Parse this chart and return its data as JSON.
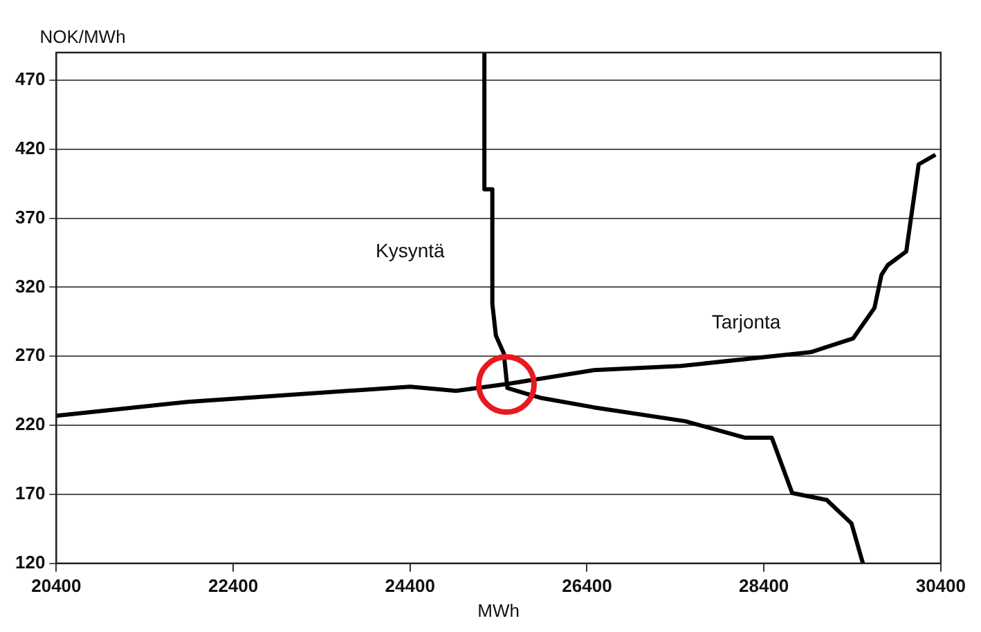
{
  "chart_data": {
    "type": "line",
    "xlabel": "MWh",
    "ylabel": "NOK/MWh",
    "xlim": [
      20400,
      30400
    ],
    "xticks": [
      20400,
      22400,
      24400,
      26400,
      28400,
      30400
    ],
    "ylim": [
      120,
      490
    ],
    "yticks": [
      120,
      170,
      220,
      270,
      320,
      370,
      420,
      470
    ],
    "grid": "y",
    "marker": "none",
    "line_style": "solid",
    "series": [
      {
        "name": "Kysyntä",
        "color": "#000000",
        "x": [
          25240,
          25240,
          25330,
          25330,
          25370,
          25460,
          25500,
          25870,
          26480,
          27510,
          28190,
          28490,
          28720,
          29110,
          29390,
          29520
        ],
        "values": [
          490,
          391,
          391,
          308,
          285,
          272,
          247,
          240,
          233,
          223,
          211,
          211,
          171,
          166,
          149,
          120
        ]
      },
      {
        "name": "Tarjonta",
        "color": "#000000",
        "x": [
          20400,
          21880,
          24400,
          24920,
          25500,
          26480,
          27460,
          28930,
          29410,
          29650,
          29730,
          29800,
          30010,
          30150,
          30340
        ],
        "values": [
          227,
          237,
          248,
          245,
          250,
          260,
          263,
          273,
          283,
          305,
          329,
          336,
          346,
          409,
          416
        ]
      }
    ]
  }
}
